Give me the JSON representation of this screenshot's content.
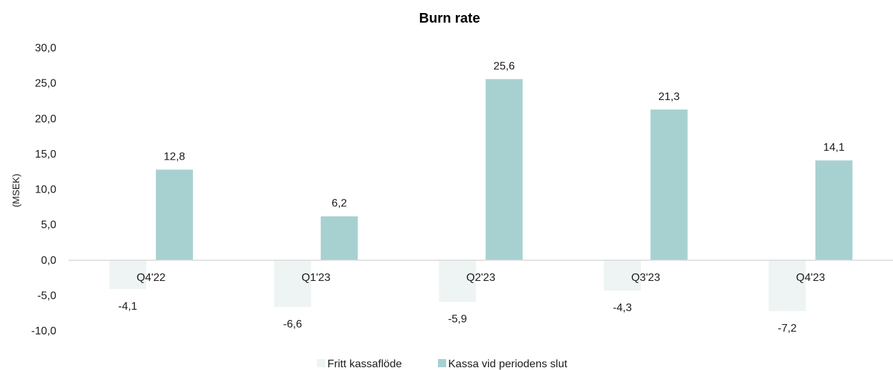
{
  "chart_data": {
    "type": "bar",
    "title": "Burn rate",
    "xlabel": "",
    "ylabel": "(MSEK)",
    "categories": [
      "Q4'22",
      "Q1'23",
      "Q2'23",
      "Q3'23",
      "Q4'23"
    ],
    "series": [
      {
        "name": "Fritt kassaflöde",
        "values": [
          -4.1,
          -6.6,
          -5.9,
          -4.3,
          -7.2
        ],
        "labels": [
          "-4,1",
          "-6,6",
          "-5,9",
          "-4,3",
          "-7,2"
        ],
        "color": "#eef4f3"
      },
      {
        "name": "Kassa vid periodens slut",
        "values": [
          12.8,
          6.2,
          25.6,
          21.3,
          14.1
        ],
        "labels": [
          "12,8",
          "6,2",
          "25,6",
          "21,3",
          "14,1"
        ],
        "color": "#a7d1d0"
      }
    ],
    "ylim": [
      -10,
      30
    ],
    "yticks": [
      30,
      25,
      20,
      15,
      10,
      5,
      0,
      -5,
      -10
    ],
    "ytick_labels": [
      "30,0",
      "25,0",
      "20,0",
      "15,0",
      "10,0",
      "5,0",
      "0,0",
      "-5,0",
      "-10,0"
    ],
    "grid": false,
    "legend_position": "bottom"
  }
}
